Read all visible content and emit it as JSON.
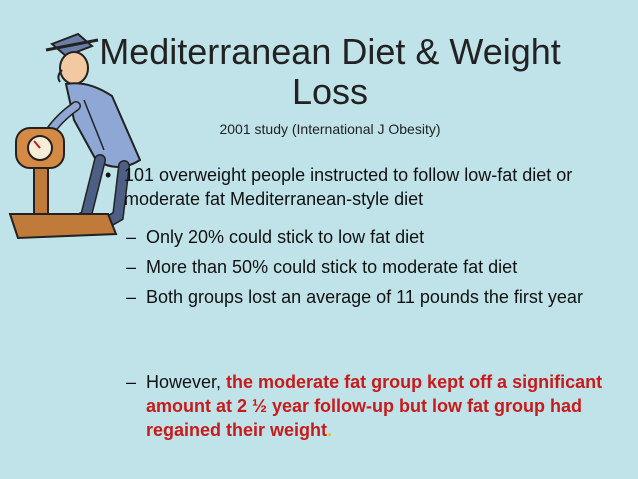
{
  "slide": {
    "title": "Mediterranean Diet & Weight Loss",
    "subtitle": "2001 study (International J Obesity)",
    "bullet": {
      "marker": "•",
      "text": "101 overweight  people instructed to follow low-fat diet or moderate fat Mediterranean-style diet"
    },
    "sub_marker": "–",
    "sub_bullets": [
      "Only 20% could stick to low fat diet",
      "More than 50% could stick to moderate fat diet",
      "Both groups lost an average of 11 pounds the first year"
    ],
    "final": {
      "lead": "However, ",
      "highlight": "the moderate fat group kept off a significant amount at  2 ½ year follow-up but low fat group had regained their weight",
      "end": "."
    },
    "colors": {
      "background": "#bfe3e8",
      "highlight": "#c81a1a",
      "period": "#e3c21a"
    },
    "clipart_icon": "man-on-scale-icon"
  }
}
